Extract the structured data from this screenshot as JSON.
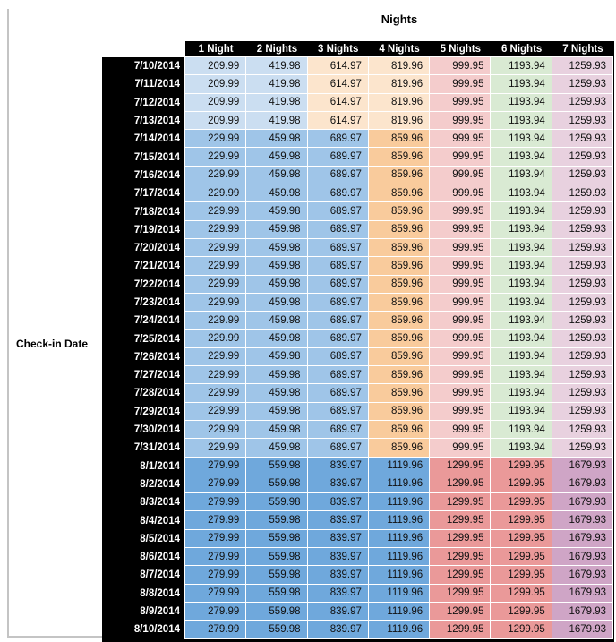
{
  "chart_data": {
    "type": "table",
    "title": "Nights",
    "row_label": "Check-in Date",
    "columns": [
      "1 Night",
      "2 Nights",
      "3 Nights",
      "4 Nights",
      "5 Nights",
      "6 Nights",
      "7 Nights"
    ],
    "rows": [
      {
        "date": "7/10/2014",
        "band": "early",
        "values": [
          "209.99",
          "419.98",
          "614.97",
          "819.96",
          "999.95",
          "1193.94",
          "1259.93"
        ]
      },
      {
        "date": "7/11/2014",
        "band": "early",
        "values": [
          "209.99",
          "419.98",
          "614.97",
          "819.96",
          "999.95",
          "1193.94",
          "1259.93"
        ]
      },
      {
        "date": "7/12/2014",
        "band": "early",
        "values": [
          "209.99",
          "419.98",
          "614.97",
          "819.96",
          "999.95",
          "1193.94",
          "1259.93"
        ]
      },
      {
        "date": "7/13/2014",
        "band": "early",
        "values": [
          "209.99",
          "419.98",
          "614.97",
          "819.96",
          "999.95",
          "1193.94",
          "1259.93"
        ]
      },
      {
        "date": "7/14/2014",
        "band": "mid",
        "values": [
          "229.99",
          "459.98",
          "689.97",
          "859.96",
          "999.95",
          "1193.94",
          "1259.93"
        ]
      },
      {
        "date": "7/15/2014",
        "band": "mid",
        "values": [
          "229.99",
          "459.98",
          "689.97",
          "859.96",
          "999.95",
          "1193.94",
          "1259.93"
        ]
      },
      {
        "date": "7/16/2014",
        "band": "mid",
        "values": [
          "229.99",
          "459.98",
          "689.97",
          "859.96",
          "999.95",
          "1193.94",
          "1259.93"
        ]
      },
      {
        "date": "7/17/2014",
        "band": "mid",
        "values": [
          "229.99",
          "459.98",
          "689.97",
          "859.96",
          "999.95",
          "1193.94",
          "1259.93"
        ]
      },
      {
        "date": "7/18/2014",
        "band": "mid",
        "values": [
          "229.99",
          "459.98",
          "689.97",
          "859.96",
          "999.95",
          "1193.94",
          "1259.93"
        ]
      },
      {
        "date": "7/19/2014",
        "band": "mid",
        "values": [
          "229.99",
          "459.98",
          "689.97",
          "859.96",
          "999.95",
          "1193.94",
          "1259.93"
        ]
      },
      {
        "date": "7/20/2014",
        "band": "mid",
        "values": [
          "229.99",
          "459.98",
          "689.97",
          "859.96",
          "999.95",
          "1193.94",
          "1259.93"
        ]
      },
      {
        "date": "7/21/2014",
        "band": "mid",
        "values": [
          "229.99",
          "459.98",
          "689.97",
          "859.96",
          "999.95",
          "1193.94",
          "1259.93"
        ]
      },
      {
        "date": "7/22/2014",
        "band": "mid",
        "values": [
          "229.99",
          "459.98",
          "689.97",
          "859.96",
          "999.95",
          "1193.94",
          "1259.93"
        ]
      },
      {
        "date": "7/23/2014",
        "band": "mid",
        "values": [
          "229.99",
          "459.98",
          "689.97",
          "859.96",
          "999.95",
          "1193.94",
          "1259.93"
        ]
      },
      {
        "date": "7/24/2014",
        "band": "mid",
        "values": [
          "229.99",
          "459.98",
          "689.97",
          "859.96",
          "999.95",
          "1193.94",
          "1259.93"
        ]
      },
      {
        "date": "7/25/2014",
        "band": "mid",
        "values": [
          "229.99",
          "459.98",
          "689.97",
          "859.96",
          "999.95",
          "1193.94",
          "1259.93"
        ]
      },
      {
        "date": "7/26/2014",
        "band": "mid",
        "values": [
          "229.99",
          "459.98",
          "689.97",
          "859.96",
          "999.95",
          "1193.94",
          "1259.93"
        ]
      },
      {
        "date": "7/27/2014",
        "band": "mid",
        "values": [
          "229.99",
          "459.98",
          "689.97",
          "859.96",
          "999.95",
          "1193.94",
          "1259.93"
        ]
      },
      {
        "date": "7/28/2014",
        "band": "mid",
        "values": [
          "229.99",
          "459.98",
          "689.97",
          "859.96",
          "999.95",
          "1193.94",
          "1259.93"
        ]
      },
      {
        "date": "7/29/2014",
        "band": "mid",
        "values": [
          "229.99",
          "459.98",
          "689.97",
          "859.96",
          "999.95",
          "1193.94",
          "1259.93"
        ]
      },
      {
        "date": "7/30/2014",
        "band": "mid",
        "values": [
          "229.99",
          "459.98",
          "689.97",
          "859.96",
          "999.95",
          "1193.94",
          "1259.93"
        ]
      },
      {
        "date": "7/31/2014",
        "band": "mid",
        "values": [
          "229.99",
          "459.98",
          "689.97",
          "859.96",
          "999.95",
          "1193.94",
          "1259.93"
        ]
      },
      {
        "date": "8/1/2014",
        "band": "august",
        "values": [
          "279.99",
          "559.98",
          "839.97",
          "1119.96",
          "1299.95",
          "1299.95",
          "1679.93"
        ]
      },
      {
        "date": "8/2/2014",
        "band": "august",
        "values": [
          "279.99",
          "559.98",
          "839.97",
          "1119.96",
          "1299.95",
          "1299.95",
          "1679.93"
        ]
      },
      {
        "date": "8/3/2014",
        "band": "august",
        "values": [
          "279.99",
          "559.98",
          "839.97",
          "1119.96",
          "1299.95",
          "1299.95",
          "1679.93"
        ]
      },
      {
        "date": "8/4/2014",
        "band": "august",
        "values": [
          "279.99",
          "559.98",
          "839.97",
          "1119.96",
          "1299.95",
          "1299.95",
          "1679.93"
        ]
      },
      {
        "date": "8/5/2014",
        "band": "august",
        "values": [
          "279.99",
          "559.98",
          "839.97",
          "1119.96",
          "1299.95",
          "1299.95",
          "1679.93"
        ]
      },
      {
        "date": "8/6/2014",
        "band": "august",
        "values": [
          "279.99",
          "559.98",
          "839.97",
          "1119.96",
          "1299.95",
          "1299.95",
          "1679.93"
        ]
      },
      {
        "date": "8/7/2014",
        "band": "august",
        "values": [
          "279.99",
          "559.98",
          "839.97",
          "1119.96",
          "1299.95",
          "1299.95",
          "1679.93"
        ]
      },
      {
        "date": "8/8/2014",
        "band": "august",
        "values": [
          "279.99",
          "559.98",
          "839.97",
          "1119.96",
          "1299.95",
          "1299.95",
          "1679.93"
        ]
      },
      {
        "date": "8/9/2014",
        "band": "august",
        "values": [
          "279.99",
          "559.98",
          "839.97",
          "1119.96",
          "1299.95",
          "1299.95",
          "1679.93"
        ]
      },
      {
        "date": "8/10/2014",
        "band": "august",
        "values": [
          "279.99",
          "559.98",
          "839.97",
          "1119.96",
          "1299.95",
          "1299.95",
          "1679.93"
        ]
      }
    ]
  },
  "colors": {
    "header_bg": "#000000",
    "header_text": "#ffffff",
    "gridline": "#ffffff",
    "band_cell_colors": {
      "early": [
        "#CBDEF1",
        "#CBDEF1",
        "#FCE5CD",
        "#FCE5CD",
        "#F4CCCC",
        "#D9EAD3",
        "#E8D1DF"
      ],
      "mid": [
        "#9FC5E8",
        "#9FC5E8",
        "#9FC5E8",
        "#F9CB9C",
        "#F4CCCC",
        "#D9EAD3",
        "#E8D1DF"
      ],
      "august": [
        "#6FA8DC",
        "#6FA8DC",
        "#6FA8DC",
        "#6FA8DC",
        "#EA9999",
        "#EA9999",
        "#CFA5C6"
      ]
    }
  }
}
